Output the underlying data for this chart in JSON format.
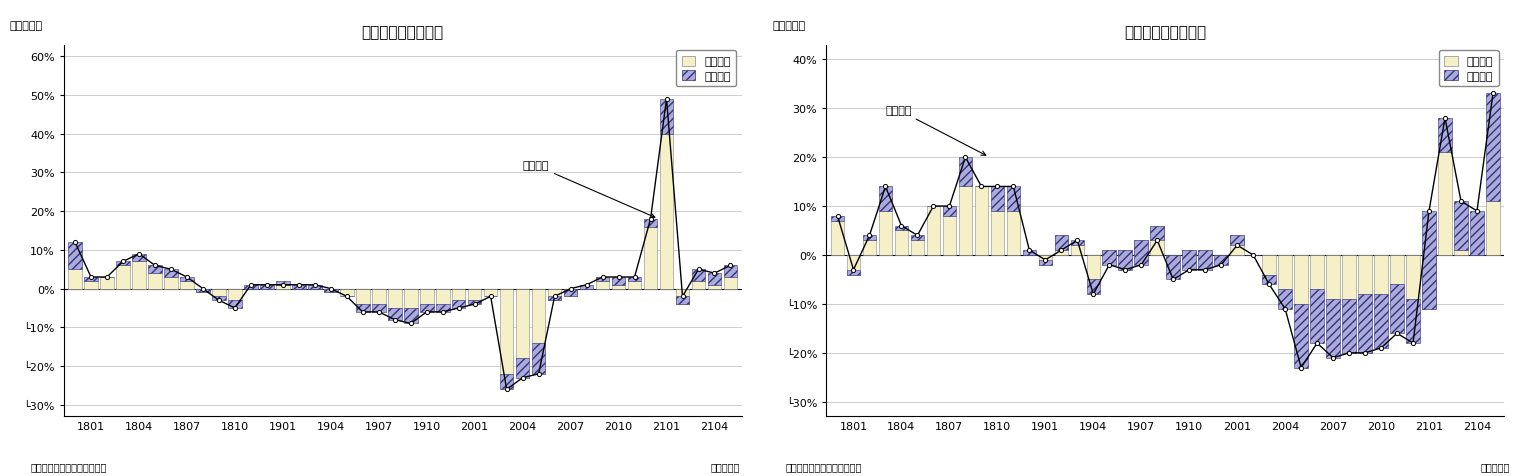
{
  "left_title": "輸出金額の要因分解",
  "right_title": "輸入金額の要因分解",
  "y_label": "（前年比）",
  "x_label": "（年・月）",
  "source": "（資料）財務省「貿易統計」",
  "legend_quantity": "数量要因",
  "legend_price": "価格要因",
  "left_line_label": "輸出金額",
  "right_line_label": "輸入金額",
  "xtick_labels": [
    "1801",
    "1804",
    "1807",
    "1810",
    "1901",
    "1904",
    "1907",
    "1910",
    "2001",
    "2004",
    "2007",
    "2010",
    "2101",
    "2104"
  ],
  "left_ylim": [
    -33,
    63
  ],
  "right_ylim": [
    -33,
    43
  ],
  "left_yticks": [
    60,
    50,
    40,
    30,
    20,
    10,
    0,
    -10,
    -20,
    -30
  ],
  "right_yticks": [
    40,
    30,
    20,
    10,
    0,
    -10,
    -20,
    -30
  ],
  "left_ytick_labels": [
    "60%",
    "50%",
    "40%",
    "30%",
    "20%",
    "10%",
    "0%",
    "└10%",
    "└20%",
    "└30%"
  ],
  "right_ytick_labels": [
    "40%",
    "30%",
    "20%",
    "10%",
    "0%",
    "└10%",
    "└20%",
    "└30%"
  ],
  "bar_color_quantity": "#F5F0C8",
  "bar_color_price_face": "#AAAADD",
  "bar_color_price_edge": "#333377",
  "line_color": "#000000",
  "left_quantity": [
    5,
    2,
    3,
    6,
    7,
    4,
    3,
    2,
    -1,
    -2,
    -3,
    0,
    0,
    1,
    0,
    0,
    -1,
    -2,
    -4,
    -4,
    -5,
    -5,
    -4,
    -4,
    -3,
    -3,
    -2,
    -22,
    -18,
    -14,
    -3,
    -2,
    0,
    2,
    1,
    2,
    16,
    40,
    -4,
    2,
    1,
    3
  ],
  "left_price": [
    7,
    1,
    0,
    1,
    2,
    2,
    2,
    1,
    1,
    -1,
    -2,
    1,
    1,
    1,
    1,
    1,
    1,
    0,
    -2,
    -2,
    -3,
    -4,
    -2,
    -2,
    -2,
    -1,
    0,
    -4,
    -5,
    -8,
    1,
    2,
    1,
    1,
    2,
    1,
    2,
    9,
    2,
    3,
    3,
    3
  ],
  "left_line": [
    12,
    3,
    3,
    7,
    9,
    6,
    5,
    3,
    0,
    -3,
    -5,
    1,
    1,
    1,
    1,
    1,
    0,
    -2,
    -6,
    -6,
    -8,
    -9,
    -6,
    -6,
    -5,
    -4,
    -2,
    -26,
    -23,
    -22,
    -2,
    0,
    1,
    3,
    3,
    3,
    18,
    49,
    -2,
    5,
    4,
    6
  ],
  "right_quantity": [
    7,
    -4,
    3,
    9,
    5,
    3,
    10,
    8,
    14,
    14,
    9,
    9,
    0,
    -2,
    4,
    2,
    -5,
    1,
    1,
    3,
    6,
    0,
    1,
    1,
    0,
    4,
    0,
    -4,
    -7,
    -10,
    -7,
    -9,
    -9,
    -8,
    -8,
    -6,
    -9,
    -11,
    21,
    1,
    0,
    11
  ],
  "right_price": [
    1,
    1,
    1,
    5,
    1,
    1,
    0,
    2,
    6,
    0,
    5,
    5,
    1,
    1,
    -3,
    1,
    -3,
    -3,
    -4,
    -5,
    -3,
    -5,
    -4,
    -4,
    -2,
    -2,
    0,
    -2,
    -4,
    -13,
    -11,
    -12,
    -11,
    -12,
    -11,
    -10,
    -9,
    20,
    7,
    10,
    9,
    22
  ],
  "right_line": [
    8,
    -3,
    4,
    14,
    6,
    4,
    10,
    10,
    20,
    14,
    14,
    14,
    1,
    -1,
    1,
    3,
    -8,
    -2,
    -3,
    -2,
    3,
    -5,
    -3,
    -3,
    -2,
    2,
    0,
    -6,
    -11,
    -23,
    -18,
    -21,
    -20,
    -20,
    -19,
    -16,
    -18,
    9,
    28,
    11,
    9,
    33
  ]
}
